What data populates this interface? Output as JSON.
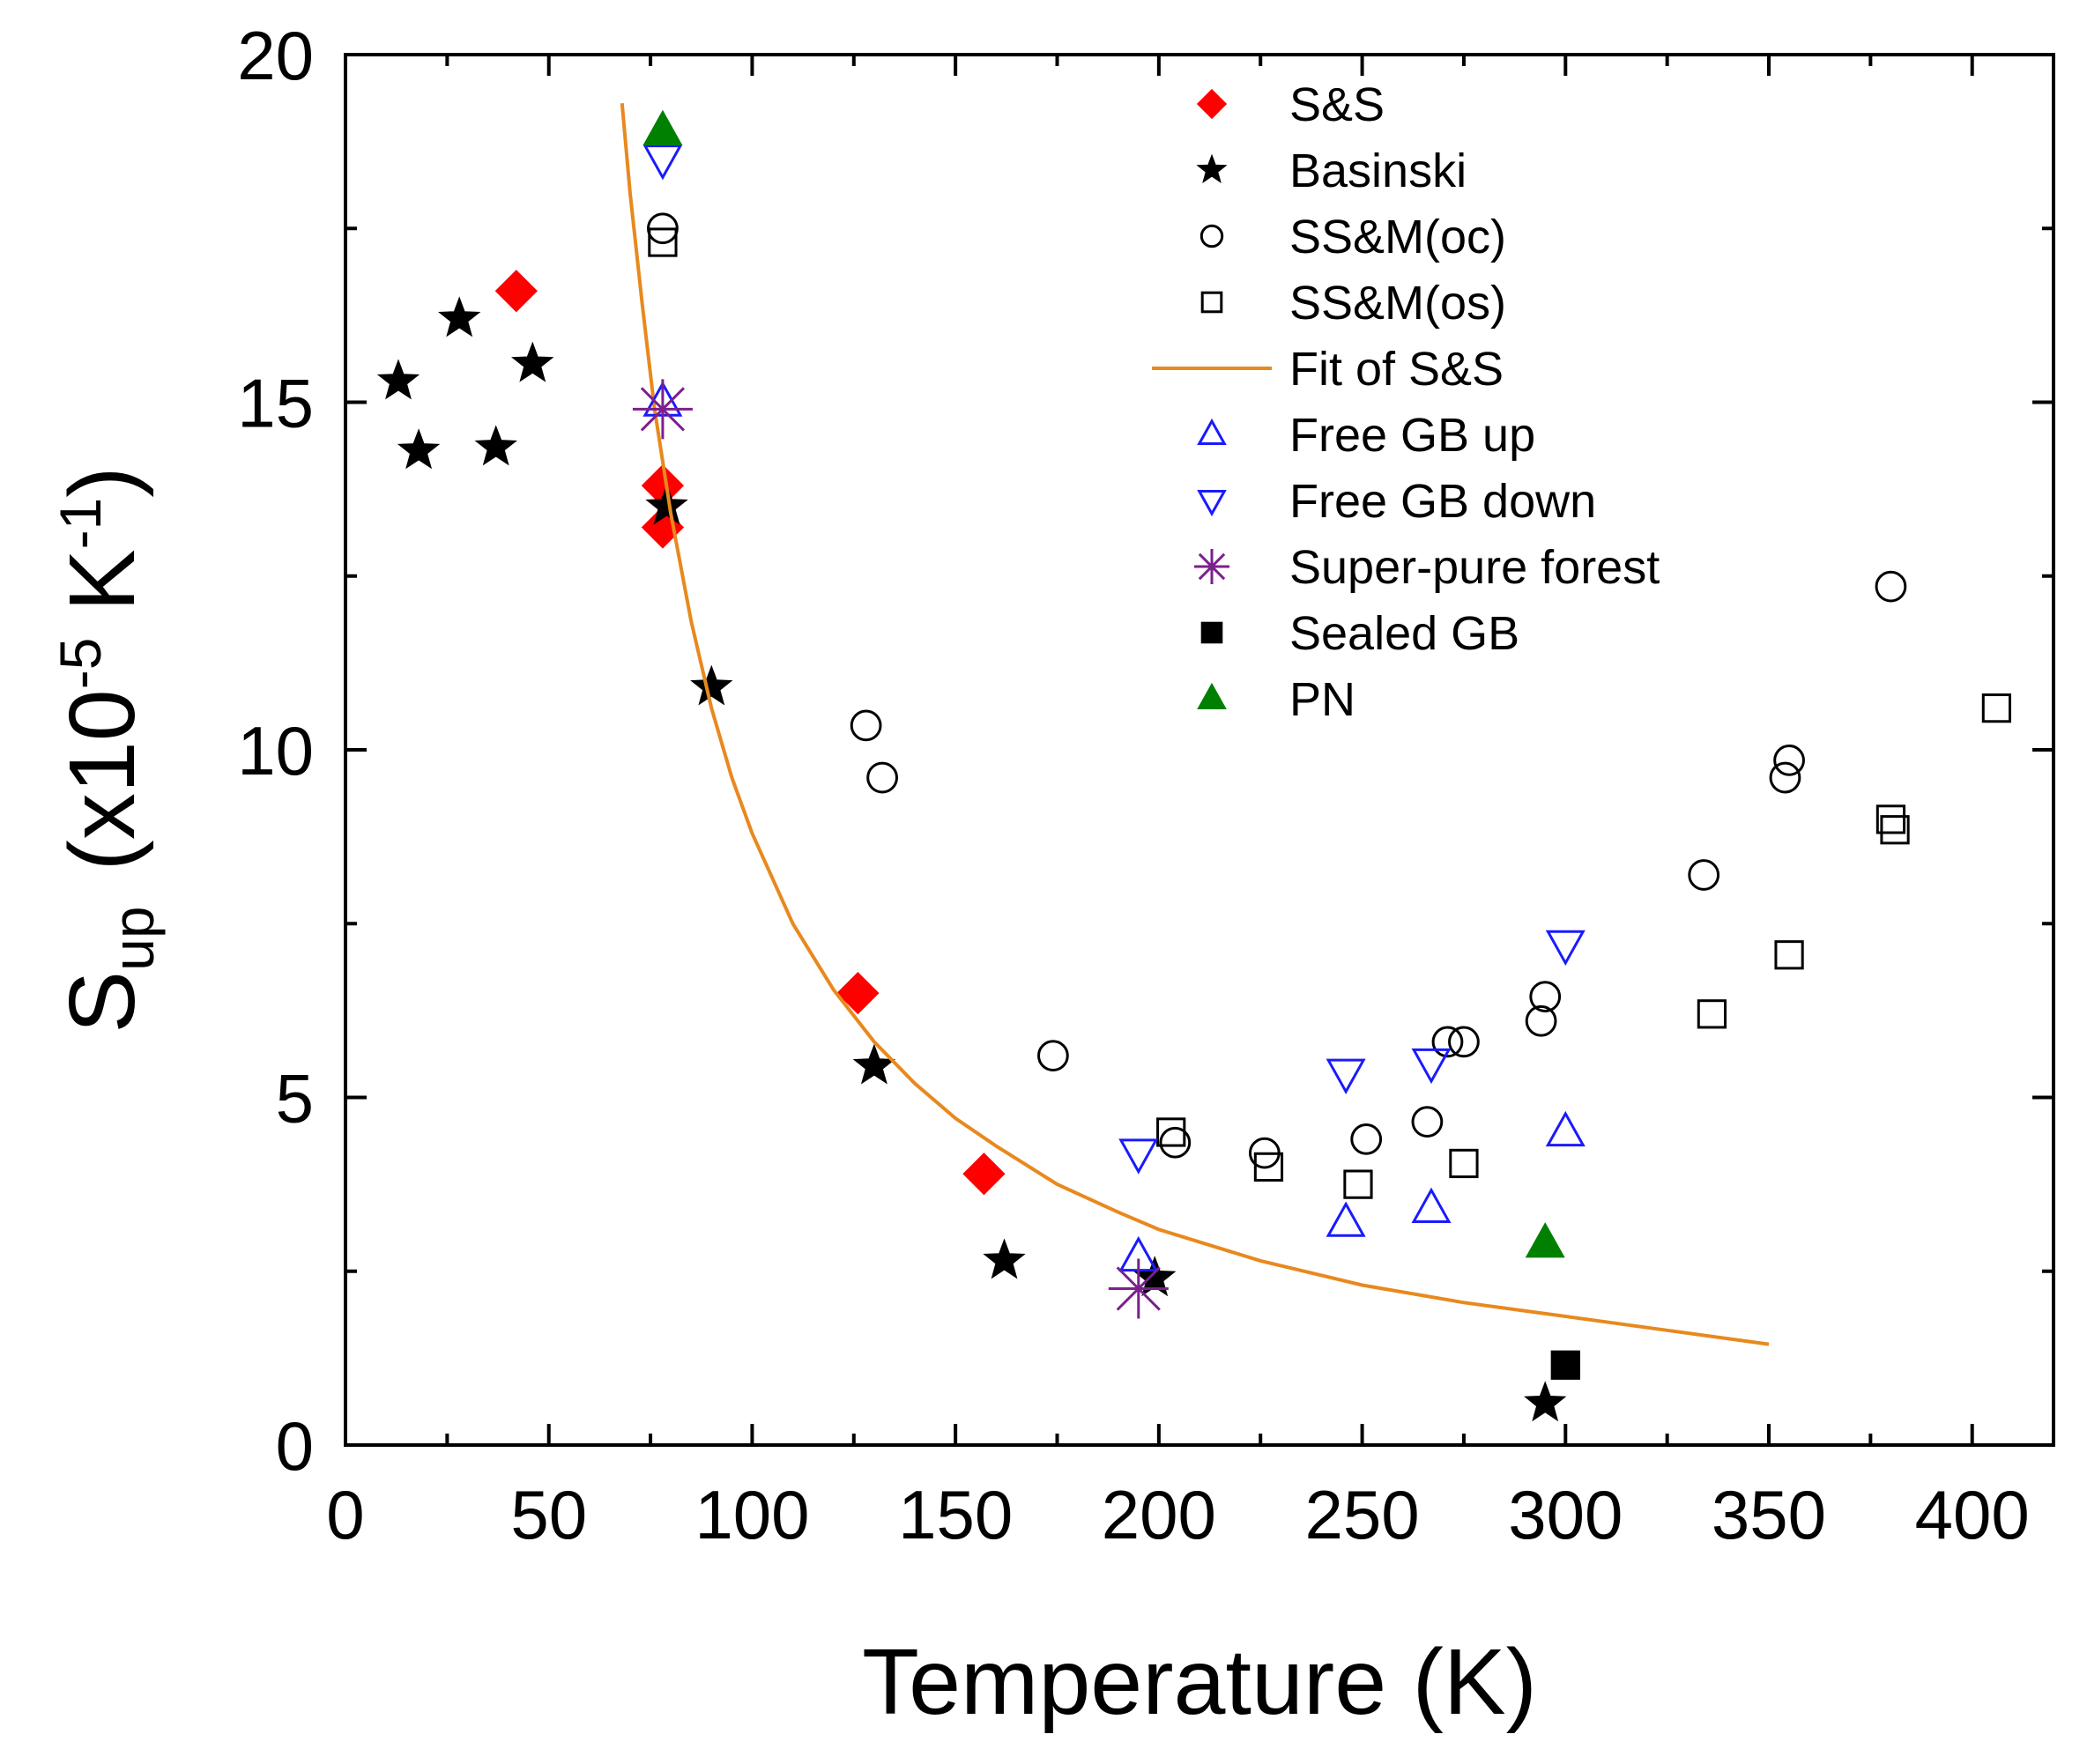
{
  "chart_data": {
    "type": "scatter",
    "xlabel": "Temperature (K)",
    "ylabel": {
      "base": "S",
      "base_sub": "up",
      "prefix": "(x10",
      "exp": "-5",
      "unit": " K",
      "unit_exp": "-1",
      "suffix": ")"
    },
    "xlim": [
      0,
      420
    ],
    "ylim": [
      0,
      20
    ],
    "xticks": [
      0,
      50,
      100,
      150,
      200,
      250,
      300,
      350,
      400
    ],
    "yticks": [
      0,
      5,
      10,
      15,
      20
    ],
    "grid": false,
    "legend_position": "top-right",
    "series": [
      {
        "name": "S&S",
        "marker": "diamond",
        "color": "#ff0000",
        "filled": true,
        "points": [
          [
            42,
            16.6
          ],
          [
            78,
            13.8
          ],
          [
            78,
            13.2
          ],
          [
            126,
            6.5
          ],
          [
            157,
            3.9
          ]
        ]
      },
      {
        "name": "Basinski",
        "marker": "star",
        "color": "#000000",
        "filled": true,
        "points": [
          [
            13,
            15.3
          ],
          [
            18,
            14.3
          ],
          [
            28,
            16.2
          ],
          [
            37,
            14.35
          ],
          [
            46,
            15.55
          ],
          [
            79,
            13.5
          ],
          [
            90,
            10.9
          ],
          [
            130,
            5.45
          ],
          [
            162,
            2.65
          ],
          [
            199,
            2.4
          ],
          [
            295,
            0.6
          ]
        ]
      },
      {
        "name": "SS&M(oc)",
        "marker": "circle",
        "color": "#000000",
        "filled": false,
        "points": [
          [
            78,
            17.5
          ],
          [
            128,
            10.35
          ],
          [
            132,
            9.6
          ],
          [
            174,
            5.6
          ],
          [
            204,
            4.35
          ],
          [
            226,
            4.2
          ],
          [
            251,
            4.4
          ],
          [
            266,
            4.65
          ],
          [
            271,
            5.8
          ],
          [
            275,
            5.8
          ],
          [
            294,
            6.1
          ],
          [
            295,
            6.45
          ],
          [
            334,
            8.2
          ],
          [
            354,
            9.6
          ],
          [
            355,
            9.85
          ],
          [
            380,
            12.35
          ]
        ]
      },
      {
        "name": "SS&M(os)",
        "marker": "square",
        "color": "#000000",
        "filled": false,
        "points": [
          [
            78,
            17.3
          ],
          [
            203,
            4.5
          ],
          [
            227,
            4.0
          ],
          [
            249,
            3.75
          ],
          [
            275,
            4.05
          ],
          [
            336,
            6.2
          ],
          [
            355,
            7.05
          ],
          [
            380,
            9.0
          ],
          [
            381,
            8.85
          ],
          [
            406,
            10.6
          ]
        ]
      },
      {
        "name": "Fit of S&S",
        "marker": "line",
        "color": "#e8891e",
        "filled": false,
        "points": [
          [
            68,
            19.3
          ],
          [
            70,
            18.0
          ],
          [
            73,
            16.4
          ],
          [
            76,
            14.9
          ],
          [
            80,
            13.4
          ],
          [
            85,
            11.85
          ],
          [
            90,
            10.6
          ],
          [
            95,
            9.6
          ],
          [
            100,
            8.8
          ],
          [
            110,
            7.5
          ],
          [
            120,
            6.55
          ],
          [
            130,
            5.8
          ],
          [
            140,
            5.2
          ],
          [
            150,
            4.7
          ],
          [
            160,
            4.3
          ],
          [
            175,
            3.75
          ],
          [
            190,
            3.35
          ],
          [
            200,
            3.1
          ],
          [
            225,
            2.65
          ],
          [
            250,
            2.3
          ],
          [
            275,
            2.05
          ],
          [
            300,
            1.85
          ],
          [
            325,
            1.65
          ],
          [
            350,
            1.45
          ]
        ]
      },
      {
        "name": "Free GB up",
        "marker": "triangle-up",
        "color": "#1a1aff",
        "filled": false,
        "points": [
          [
            78,
            15.0
          ],
          [
            195,
            2.7
          ],
          [
            246,
            3.2
          ],
          [
            267,
            3.4
          ],
          [
            300,
            4.5
          ]
        ]
      },
      {
        "name": "Free GB down",
        "marker": "triangle-down",
        "color": "#1a1aff",
        "filled": false,
        "points": [
          [
            78,
            18.5
          ],
          [
            195,
            4.2
          ],
          [
            246,
            5.35
          ],
          [
            267,
            5.5
          ],
          [
            300,
            7.2
          ]
        ]
      },
      {
        "name": "Super-pure forest",
        "marker": "asterisk",
        "color": "#7b1f8e",
        "filled": false,
        "points": [
          [
            78,
            14.9
          ],
          [
            195,
            2.25
          ]
        ]
      },
      {
        "name": "Sealed GB",
        "marker": "square",
        "color": "#000000",
        "filled": true,
        "points": [
          [
            300,
            1.15
          ]
        ]
      },
      {
        "name": "PN",
        "marker": "triangle-up",
        "color": "#008000",
        "filled": true,
        "points": [
          [
            78,
            18.9
          ],
          [
            295,
            2.9
          ]
        ]
      }
    ]
  }
}
